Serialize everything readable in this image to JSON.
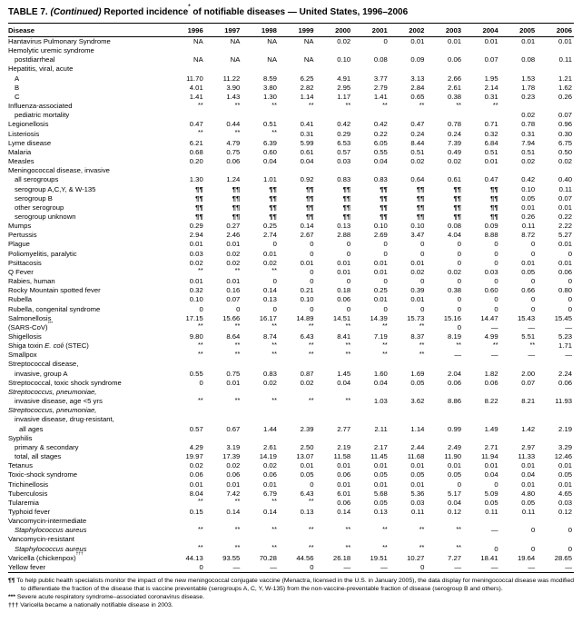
{
  "title": {
    "label": "TABLE 7.",
    "continued": "(Continued)",
    "main": "Reported incidence",
    "star": "*",
    "tail": "of notifiable diseases — United States, 1996–2006"
  },
  "table": {
    "columns": [
      "Disease",
      "1996",
      "1997",
      "1998",
      "1999",
      "2000",
      "2001",
      "2002",
      "2003",
      "2004",
      "2005",
      "2006"
    ],
    "rows": [
      {
        "label": "Hantavirus Pulmonary Syndrome",
        "indent": 0,
        "values": [
          "NA",
          "NA",
          "NA",
          "NA",
          "0.02",
          "0",
          "0.01",
          "0.01",
          "0.01",
          "0.01",
          "0.01"
        ]
      },
      {
        "label": "Hemolytic uremic syndrome",
        "indent": 0,
        "values": []
      },
      {
        "label": "postdiarrheal",
        "indent": 1,
        "values": [
          "NA",
          "NA",
          "NA",
          "NA",
          "0.10",
          "0.08",
          "0.09",
          "0.06",
          "0.07",
          "0.08",
          "0.11"
        ]
      },
      {
        "label": "Hepatitis, viral, acute",
        "indent": 0,
        "values": []
      },
      {
        "label": "A",
        "indent": 1,
        "values": [
          "11.70",
          "11.22",
          "8.59",
          "6.25",
          "4.91",
          "3.77",
          "3.13",
          "2.66",
          "1.95",
          "1.53",
          "1.21"
        ]
      },
      {
        "label": "B",
        "indent": 1,
        "values": [
          "4.01",
          "3.90",
          "3.80",
          "2.82",
          "2.95",
          "2.79",
          "2.84",
          "2.61",
          "2.14",
          "1.78",
          "1.62"
        ]
      },
      {
        "label": "C",
        "indent": 1,
        "values": [
          "1.41",
          "1.43",
          "1.30",
          "1.14",
          "1.17",
          "1.41",
          "0.65",
          "0.38",
          "0.31",
          "0.23",
          "0.26"
        ]
      },
      {
        "label": "Influenza-associated",
        "indent": 0,
        "values": [
          "**",
          "**",
          "**",
          "**",
          "**",
          "**",
          "**",
          "**",
          "**",
          "",
          ""
        ]
      },
      {
        "label": "pediatric mortality",
        "indent": 1,
        "values": [
          "",
          "",
          "",
          "",
          "",
          "",
          "",
          "",
          "",
          "0.02",
          "0.07"
        ]
      },
      {
        "label": "Legionellosis",
        "indent": 0,
        "values": [
          "0.47",
          "0.44",
          "0.51",
          "0.41",
          "0.42",
          "0.42",
          "0.47",
          "0.78",
          "0.71",
          "0.78",
          "0.96"
        ]
      },
      {
        "label": "Listeriosis",
        "indent": 0,
        "values": [
          "**",
          "**",
          "**",
          "0.31",
          "0.29",
          "0.22",
          "0.24",
          "0.24",
          "0.32",
          "0.31",
          "0.30"
        ]
      },
      {
        "label": "Lyme disease",
        "indent": 0,
        "values": [
          "6.21",
          "4.79",
          "6.39",
          "5.99",
          "6.53",
          "6.05",
          "8.44",
          "7.39",
          "6.84",
          "7.94",
          "6.75"
        ]
      },
      {
        "label": "Malaria",
        "indent": 0,
        "values": [
          "0.68",
          "0.75",
          "0.60",
          "0.61",
          "0.57",
          "0.55",
          "0.51",
          "0.49",
          "0.51",
          "0.51",
          "0.50"
        ]
      },
      {
        "label": "Measles",
        "indent": 0,
        "values": [
          "0.20",
          "0.06",
          "0.04",
          "0.04",
          "0.03",
          "0.04",
          "0.02",
          "0.02",
          "0.01",
          "0.02",
          "0.02"
        ]
      },
      {
        "label": "Meningococcal disease, invasive",
        "indent": 0,
        "values": []
      },
      {
        "label": "all serogroups",
        "indent": 1,
        "values": [
          "1.30",
          "1.24",
          "1.01",
          "0.92",
          "0.83",
          "0.83",
          "0.64",
          "0.61",
          "0.47",
          "0.42",
          "0.40"
        ]
      },
      {
        "label": "serogroup A,C,Y, & W-135",
        "indent": 1,
        "values": [
          "¶¶",
          "¶¶",
          "¶¶",
          "¶¶",
          "¶¶",
          "¶¶",
          "¶¶",
          "¶¶",
          "¶¶",
          "0.10",
          "0.11"
        ]
      },
      {
        "label": "serogroup B",
        "indent": 1,
        "values": [
          "¶¶",
          "¶¶",
          "¶¶",
          "¶¶",
          "¶¶",
          "¶¶",
          "¶¶",
          "¶¶",
          "¶¶",
          "0.05",
          "0.07"
        ]
      },
      {
        "label": "other serogroup",
        "indent": 1,
        "values": [
          "¶¶",
          "¶¶",
          "¶¶",
          "¶¶",
          "¶¶",
          "¶¶",
          "¶¶",
          "¶¶",
          "¶¶",
          "0.01",
          "0.01"
        ]
      },
      {
        "label": "serogroup unknown",
        "indent": 1,
        "values": [
          "¶¶",
          "¶¶",
          "¶¶",
          "¶¶",
          "¶¶",
          "¶¶",
          "¶¶",
          "¶¶",
          "¶¶",
          "0.26",
          "0.22"
        ]
      },
      {
        "label": "Mumps",
        "indent": 0,
        "values": [
          "0.29",
          "0.27",
          "0.25",
          "0.14",
          "0.13",
          "0.10",
          "0.10",
          "0.08",
          "0.09",
          "0.11",
          "2.22"
        ]
      },
      {
        "label": "Pertussis",
        "indent": 0,
        "values": [
          "2.94",
          "2.46",
          "2.74",
          "2.67",
          "2.88",
          "2.69",
          "3.47",
          "4.04",
          "8.88",
          "8.72",
          "5.27"
        ]
      },
      {
        "label": "Plague",
        "indent": 0,
        "values": [
          "0.01",
          "0.01",
          "0",
          "0",
          "0",
          "0",
          "0",
          "0",
          "0",
          "0",
          "0.01"
        ]
      },
      {
        "label": "Poliomyelitis, paralytic",
        "indent": 0,
        "values": [
          "0.03",
          "0.02",
          "0.01",
          "0",
          "0",
          "0",
          "0",
          "0",
          "0",
          "0",
          "0"
        ]
      },
      {
        "label": "Psittacosis",
        "indent": 0,
        "values": [
          "0.02",
          "0.02",
          "0.02",
          "0.01",
          "0.01",
          "0.01",
          "0.01",
          "0",
          "0",
          "0.01",
          "0.01"
        ]
      },
      {
        "label": "Q Fever",
        "indent": 0,
        "values": [
          "**",
          "**",
          "**",
          "0",
          "0.01",
          "0.01",
          "0.02",
          "0.02",
          "0.03",
          "0.05",
          "0.06"
        ]
      },
      {
        "label": "Rabies, human",
        "indent": 0,
        "values": [
          "0.01",
          "0.01",
          "0",
          "0",
          "0",
          "0",
          "0",
          "0",
          "0",
          "0",
          "0"
        ]
      },
      {
        "label": "Rocky Mountain spotted fever",
        "indent": 0,
        "values": [
          "0.32",
          "0.16",
          "0.14",
          "0.21",
          "0.18",
          "0.25",
          "0.39",
          "0.38",
          "0.60",
          "0.66",
          "0.80"
        ]
      },
      {
        "label": "Rubella",
        "indent": 0,
        "values": [
          "0.10",
          "0.07",
          "0.13",
          "0.10",
          "0.06",
          "0.01",
          "0.01",
          "0",
          "0",
          "0",
          "0"
        ]
      },
      {
        "label": "Rubella, congenital syndrome",
        "indent": 0,
        "values": [
          "0",
          "0",
          "0",
          "0",
          "0",
          "0",
          "0",
          "0",
          "0",
          "0",
          "0"
        ]
      },
      {
        "label": "Salmonellosis",
        "indent": 0,
        "values": [
          "17.15",
          "15.66",
          "16.17",
          "14.89",
          "14.51",
          "14.39",
          "15.73",
          "15.16",
          "14.47",
          "15.43",
          "15.45"
        ]
      },
      {
        "parts": [
          {
            "text": "(SARS-CoV)"
          },
          {
            "text": "***",
            "sup": true
          }
        ],
        "indent": 0,
        "values": [
          "**",
          "**",
          "**",
          "**",
          "**",
          "**",
          "**",
          "0",
          "—",
          "—",
          "—"
        ]
      },
      {
        "label": "Shigellosis",
        "indent": 0,
        "values": [
          "9.80",
          "8.64",
          "8.74",
          "6.43",
          "8.41",
          "7.19",
          "8.37",
          "8.19",
          "4.99",
          "5.51",
          "5.23"
        ]
      },
      {
        "parts": [
          {
            "text": "Shiga toxin "
          },
          {
            "text": "E. coli",
            "italic": true
          },
          {
            "text": " (STEC)"
          }
        ],
        "indent": 0,
        "values": [
          "**",
          "**",
          "**",
          "**",
          "**",
          "**",
          "**",
          "**",
          "**",
          "**",
          "1.71"
        ]
      },
      {
        "label": "Smallpox",
        "indent": 0,
        "values": [
          "**",
          "**",
          "**",
          "**",
          "**",
          "**",
          "**",
          "—",
          "—",
          "—",
          "—"
        ]
      },
      {
        "label": "Streptococcal disease,",
        "indent": 0,
        "values": []
      },
      {
        "label": "invasive, group A",
        "indent": 1,
        "values": [
          "0.55",
          "0.75",
          "0.83",
          "0.87",
          "1.45",
          "1.60",
          "1.69",
          "2.04",
          "1.82",
          "2.00",
          "2.24"
        ]
      },
      {
        "label": "Streptococcal, toxic shock syndrome",
        "indent": 0,
        "values": [
          "0",
          "0.01",
          "0.02",
          "0.02",
          "0.04",
          "0.04",
          "0.05",
          "0.06",
          "0.06",
          "0.07",
          "0.06"
        ]
      },
      {
        "label": "Streptococcus, pneumoniae,",
        "italic": true,
        "indent": 0,
        "values": []
      },
      {
        "label": "invasive disease, age <5 yrs",
        "indent": 1,
        "values": [
          "**",
          "**",
          "**",
          "**",
          "**",
          "1.03",
          "3.62",
          "8.86",
          "8.22",
          "8.21",
          "11.93"
        ]
      },
      {
        "label": "Streptococcus, pneumoniae,",
        "italic": true,
        "indent": 0,
        "values": []
      },
      {
        "label": "invasive disease, drug-resistant,",
        "indent": 1,
        "values": []
      },
      {
        "label": "all ages",
        "indent": 2,
        "values": [
          "0.57",
          "0.67",
          "1.44",
          "2.39",
          "2.77",
          "2.11",
          "1.14",
          "0.99",
          "1.49",
          "1.42",
          "2.19"
        ]
      },
      {
        "label": "Syphilis",
        "indent": 0,
        "values": []
      },
      {
        "label": "primary & secondary",
        "indent": 1,
        "values": [
          "4.29",
          "3.19",
          "2.61",
          "2.50",
          "2.19",
          "2.17",
          "2.44",
          "2.49",
          "2.71",
          "2.97",
          "3.29"
        ]
      },
      {
        "label": "total, all stages",
        "indent": 1,
        "values": [
          "19.97",
          "17.39",
          "14.19",
          "13.07",
          "11.58",
          "11.45",
          "11.68",
          "11.90",
          "11.94",
          "11.33",
          "12.46"
        ]
      },
      {
        "label": "Tetanus",
        "indent": 0,
        "values": [
          "0.02",
          "0.02",
          "0.02",
          "0.01",
          "0.01",
          "0.01",
          "0.01",
          "0.01",
          "0.01",
          "0.01",
          "0.01"
        ]
      },
      {
        "label": "Toxic-shock syndrome",
        "indent": 0,
        "values": [
          "0.06",
          "0.06",
          "0.06",
          "0.05",
          "0.06",
          "0.05",
          "0.05",
          "0.05",
          "0.04",
          "0.04",
          "0.05"
        ]
      },
      {
        "label": "Trichinellosis",
        "indent": 0,
        "values": [
          "0.01",
          "0.01",
          "0.01",
          "0",
          "0.01",
          "0.01",
          "0.01",
          "0",
          "0",
          "0.01",
          "0.01"
        ]
      },
      {
        "label": "Tuberculosis",
        "indent": 0,
        "values": [
          "8.04",
          "7.42",
          "6.79",
          "6.43",
          "6.01",
          "5.68",
          "5.36",
          "5.17",
          "5.09",
          "4.80",
          "4.65"
        ]
      },
      {
        "label": "Tularemia",
        "indent": 0,
        "values": [
          "**",
          "**",
          "**",
          "**",
          "0.06",
          "0.05",
          "0.03",
          "0.04",
          "0.05",
          "0.05",
          "0.03"
        ]
      },
      {
        "label": "Typhoid fever",
        "indent": 0,
        "values": [
          "0.15",
          "0.14",
          "0.14",
          "0.13",
          "0.14",
          "0.13",
          "0.11",
          "0.12",
          "0.11",
          "0.11",
          "0.12"
        ]
      },
      {
        "label": "Vancomycin-intermediate",
        "indent": 0,
        "values": []
      },
      {
        "label": "Staphylococcus aureus",
        "italic": true,
        "indent": 1,
        "values": [
          "**",
          "**",
          "**",
          "**",
          "**",
          "**",
          "**",
          "**",
          "—",
          "0",
          "0"
        ]
      },
      {
        "label": "Vancomycin-resistant",
        "indent": 0,
        "values": []
      },
      {
        "label": "Staphylococcus aureus",
        "italic": true,
        "indent": 1,
        "values": [
          "**",
          "**",
          "**",
          "**",
          "**",
          "**",
          "**",
          "**",
          "0",
          "0",
          "0"
        ]
      },
      {
        "parts": [
          {
            "text": "Varicella (chickenpox)"
          },
          {
            "text": "†††",
            "sup": true
          }
        ],
        "indent": 0,
        "values": [
          "44.13",
          "93.55",
          "70.28",
          "44.56",
          "26.18",
          "19.51",
          "10.27",
          "7.27",
          "18.41",
          "19.64",
          "28.65"
        ]
      },
      {
        "label": "Yellow fever",
        "indent": 0,
        "values": [
          "0",
          "—",
          "—",
          "0",
          "—",
          "—",
          "0",
          "—",
          "—",
          "—",
          "—"
        ]
      }
    ]
  },
  "footnotes": [
    {
      "marker": "¶¶",
      "text": "To help public health specialists monitor the impact of the new meningococcal conjugate vaccine (Menactra, licensed in the U.S. in January 2005), the data display for meningococcal disease was modified to differentiate the fraction of the disease that is vaccine preventable (serogroups A, C, Y, W-135) from the non-vaccine-preventable fraction of disease (serogroup B and others)."
    },
    {
      "marker": "***",
      "text": "Severe acute respiratory syndrome–associated coronavirus disease."
    },
    {
      "marker": "†††",
      "text": "Varicella became a nationally notifiable disease in 2003."
    }
  ]
}
